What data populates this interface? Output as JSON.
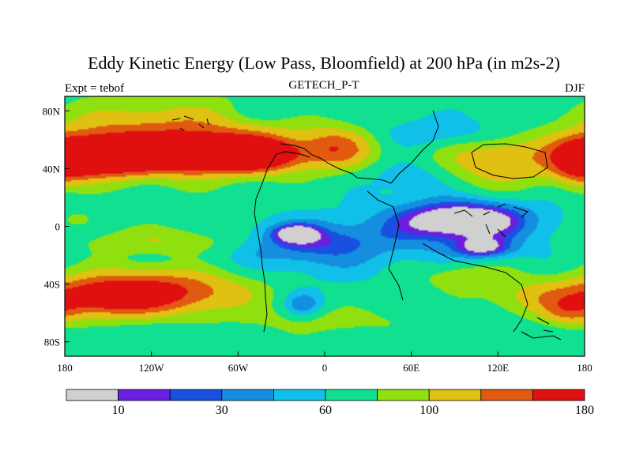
{
  "chart_data": {
    "type": "heatmap",
    "title": "Eddy Kinetic Energy (Low Pass, Bloomfield) at 200 hPa (in m2s-2)",
    "left_subtitle": "Expt = tebof",
    "center_subtitle": "GETECH_P-T",
    "right_subtitle": "DJF",
    "x_tick_labels": [
      "180",
      "120W",
      "60W",
      "0",
      "60E",
      "120E",
      "180"
    ],
    "x_tick_values": [
      -180,
      -120,
      -60,
      0,
      60,
      120,
      180
    ],
    "y_tick_labels": [
      "80N",
      "40N",
      "0",
      "40S",
      "80S"
    ],
    "y_tick_values": [
      80,
      40,
      0,
      -40,
      -80
    ],
    "xlim": [
      -180,
      180
    ],
    "ylim": [
      -90,
      90
    ],
    "colorbar": {
      "levels": [
        0,
        10,
        20,
        30,
        45,
        60,
        80,
        100,
        125,
        150,
        180
      ],
      "colors": [
        "#d0d0d0",
        "#6a1ee0",
        "#1850e0",
        "#168ee0",
        "#10c0e8",
        "#10e090",
        "#90e010",
        "#e0c010",
        "#e05a10",
        "#e01010"
      ],
      "labels": [
        {
          "text": "10",
          "index": 1
        },
        {
          "text": "30",
          "index": 3
        },
        {
          "text": "60",
          "index": 5
        },
        {
          "text": "100",
          "index": 7
        },
        {
          "text": "180",
          "index": 10
        }
      ]
    },
    "field_features": [
      {
        "lon": -90,
        "lat": 50,
        "width": 70,
        "height": 12,
        "value": 200
      },
      {
        "lon": -155,
        "lat": 48,
        "width": 30,
        "height": 12,
        "value": 185
      },
      {
        "lon": -50,
        "lat": 50,
        "width": 25,
        "height": 10,
        "value": 165
      },
      {
        "lon": -110,
        "lat": 60,
        "width": 90,
        "height": 25,
        "value": 140
      },
      {
        "lon": 10,
        "lat": 55,
        "width": 25,
        "height": 15,
        "value": 125
      },
      {
        "lon": 120,
        "lat": 45,
        "width": 45,
        "height": 20,
        "value": 118
      },
      {
        "lon": 178,
        "lat": 45,
        "width": 20,
        "height": 15,
        "value": 160
      },
      {
        "lon": 90,
        "lat": 65,
        "width": 60,
        "height": 12,
        "value": 40
      },
      {
        "lon": 60,
        "lat": 35,
        "width": 30,
        "height": 12,
        "value": 45
      },
      {
        "lon": -40,
        "lat": 78,
        "width": 30,
        "height": 8,
        "value": 50
      },
      {
        "lon": 95,
        "lat": 5,
        "width": 40,
        "height": 12,
        "value": 8
      },
      {
        "lon": 110,
        "lat": -15,
        "width": 20,
        "height": 7,
        "value": 18
      },
      {
        "lon": 95,
        "lat": 0,
        "width": 70,
        "height": 22,
        "value": 32
      },
      {
        "lon": -20,
        "lat": -5,
        "width": 15,
        "height": 6,
        "value": 12
      },
      {
        "lon": -10,
        "lat": -10,
        "width": 50,
        "height": 14,
        "value": 35
      },
      {
        "lon": -15,
        "lat": -20,
        "width": 70,
        "height": 25,
        "value": 50
      },
      {
        "lon": -120,
        "lat": -45,
        "width": 70,
        "height": 16,
        "value": 160
      },
      {
        "lon": -150,
        "lat": -50,
        "width": 40,
        "height": 12,
        "value": 130
      },
      {
        "lon": -110,
        "lat": -10,
        "width": 65,
        "height": 10,
        "value": 100
      },
      {
        "lon": -170,
        "lat": 5,
        "width": 15,
        "height": 7,
        "value": 90
      },
      {
        "lon": -15,
        "lat": -55,
        "width": 15,
        "height": 10,
        "value": 30
      },
      {
        "lon": 100,
        "lat": -35,
        "width": 35,
        "height": 10,
        "value": 100
      },
      {
        "lon": 150,
        "lat": -50,
        "width": 40,
        "height": 12,
        "value": 100
      },
      {
        "lon": 0,
        "lat": -65,
        "width": 60,
        "height": 10,
        "value": 90
      },
      {
        "lon": 170,
        "lat": -60,
        "width": 20,
        "height": 10,
        "value": 110
      }
    ],
    "background_value": 68
  }
}
